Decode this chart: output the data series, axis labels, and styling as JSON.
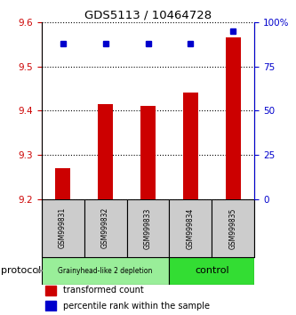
{
  "title": "GDS5113 / 10464728",
  "samples": [
    "GSM999831",
    "GSM999832",
    "GSM999833",
    "GSM999834",
    "GSM999835"
  ],
  "transformed_counts": [
    9.27,
    9.415,
    9.41,
    9.44,
    9.565
  ],
  "percentile_ranks": [
    88,
    88,
    88,
    88,
    95
  ],
  "ylim_left": [
    9.2,
    9.6
  ],
  "ylim_right": [
    0,
    100
  ],
  "yticks_left": [
    9.2,
    9.3,
    9.4,
    9.5,
    9.6
  ],
  "yticks_right": [
    0,
    25,
    50,
    75,
    100
  ],
  "bar_color": "#cc0000",
  "dot_color": "#0000cc",
  "bar_bottom": 9.2,
  "groups": [
    {
      "label": "Grainyhead-like 2 depletion",
      "indices": [
        0,
        1,
        2
      ],
      "color": "#99ee99"
    },
    {
      "label": "control",
      "indices": [
        3,
        4
      ],
      "color": "#33dd33"
    }
  ],
  "group_label": "protocol",
  "legend_items": [
    {
      "color": "#cc0000",
      "label": "transformed count"
    },
    {
      "color": "#0000cc",
      "label": "percentile rank within the sample"
    }
  ]
}
